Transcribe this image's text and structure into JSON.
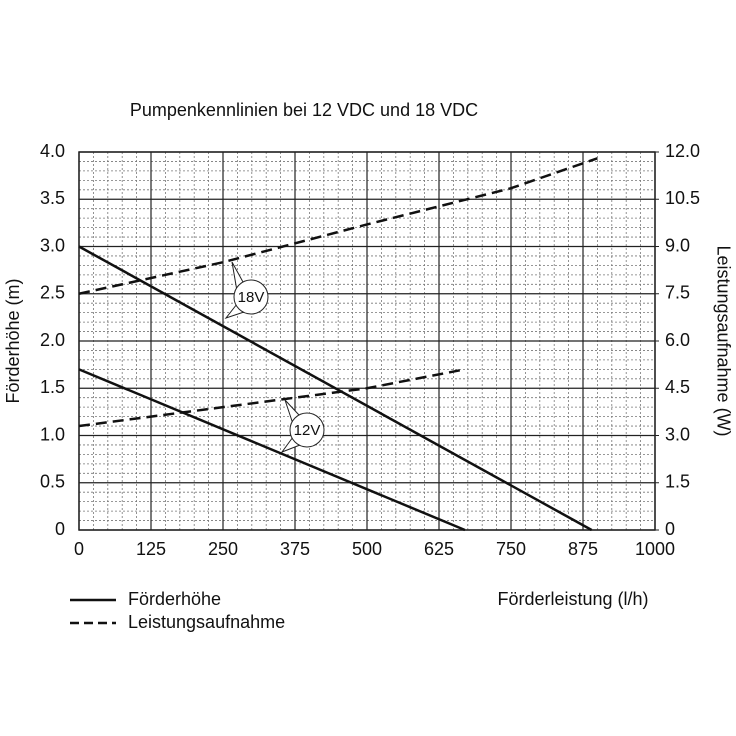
{
  "chart_data": {
    "type": "line",
    "title": "Pumpenkennlinien bei 12 VDC und 18 VDC",
    "x_label": "Förderleistung (l/h)",
    "y_label": "Förderhöhe (m)",
    "y2_label": "Leistungsaufnahme (W)",
    "xlim": [
      0,
      1000
    ],
    "xticks": [
      0,
      125,
      250,
      375,
      500,
      625,
      750,
      875,
      1000
    ],
    "ylim": [
      0,
      4
    ],
    "yticks": [
      0,
      0.5,
      {
        "value": 1,
        "label": "1.0"
      },
      1.5,
      {
        "value": 2,
        "label": "2.0"
      },
      2.5,
      {
        "value": 3,
        "label": "3.0"
      },
      3.5,
      {
        "value": 4,
        "label": "4.0"
      }
    ],
    "y2lim": [
      0,
      12
    ],
    "y2ticks": [
      0,
      1.5,
      {
        "value": 3,
        "label": "3.0"
      },
      4.5,
      {
        "value": 6,
        "label": "6.0"
      },
      7.5,
      {
        "value": 9,
        "label": "9.0"
      },
      10.5,
      {
        "value": 12,
        "label": "12.0"
      }
    ],
    "grid": true,
    "color": "#111",
    "series": [
      {
        "name": "Förderhöhe",
        "dashed": false,
        "curves": [
          {
            "x": [
              0,
              890
            ],
            "values": [
              3.0,
              0
            ]
          },
          {
            "x": [
              0,
              670
            ],
            "values": [
              1.7,
              0
            ]
          }
        ]
      },
      {
        "name": "Leistungsaufnahme",
        "dashed": true,
        "axis": "y2",
        "curves": [
          {
            "x": [
              0,
              250,
              500,
              750,
              900
            ],
            "values": [
              7.5,
              8.5,
              9.7,
              10.85,
              11.8
            ]
          },
          {
            "x": [
              0,
              250,
              500,
              670
            ],
            "values": [
              3.3,
              3.9,
              4.5,
              5.1
            ]
          }
        ]
      }
    ],
    "annotations": [
      {
        "text": "18V"
      },
      {
        "text": "12V"
      }
    ]
  }
}
